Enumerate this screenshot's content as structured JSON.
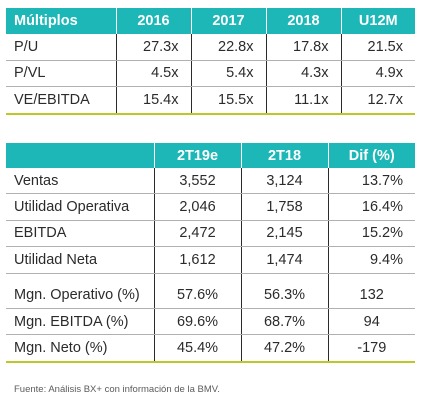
{
  "table1": {
    "header": [
      "Múltiplos",
      "2016",
      "2017",
      "2018",
      "U12M"
    ],
    "rows": [
      [
        "P/U",
        "27.3x",
        "22.8x",
        "17.8x",
        "21.5x"
      ],
      [
        "P/VL",
        "4.5x",
        "5.4x",
        "4.3x",
        "4.9x"
      ],
      [
        "VE/EBITDA",
        "15.4x",
        "15.5x",
        "11.1x",
        "12.7x"
      ]
    ]
  },
  "table2": {
    "header": [
      "",
      "2T19e",
      "2T18",
      "Dif (%)"
    ],
    "rows_a": [
      [
        "Ventas",
        "3,552",
        "3,124",
        "13.7%"
      ],
      [
        "Utilidad Operativa",
        "2,046",
        "1,758",
        "16.4%"
      ],
      [
        "EBITDA",
        "2,472",
        "2,145",
        "15.2%"
      ],
      [
        "Utilidad Neta",
        "1,612",
        "1,474",
        "9.4%"
      ]
    ],
    "rows_b": [
      [
        "Mgn. Operativo (%)",
        "57.6%",
        "56.3%",
        "132"
      ],
      [
        "Mgn. EBITDA (%)",
        "69.6%",
        "68.7%",
        "94"
      ],
      [
        "Mgn. Neto (%)",
        "45.4%",
        "47.2%",
        "-179"
      ]
    ]
  },
  "source": "Fuente: Análisis BX+ con información de la BMV.",
  "colors": {
    "header_bg": "#1eb7b7",
    "accent_line": "#bcc72a"
  }
}
